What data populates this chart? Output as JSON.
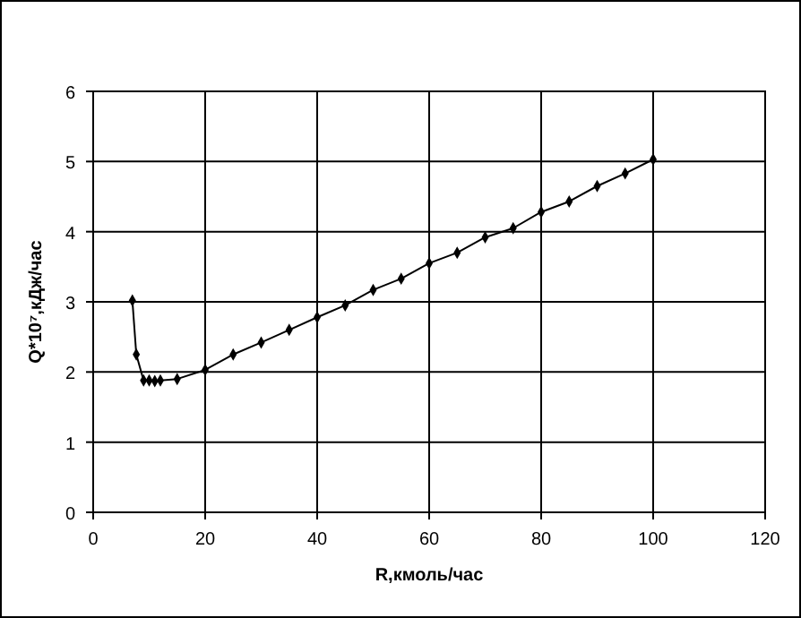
{
  "chart_data": {
    "type": "line",
    "xlabel": "R,кмоль/час",
    "ylabel": "Q*10⁷,кДж/час",
    "xlim": [
      0,
      120
    ],
    "xticks": [
      0,
      20,
      40,
      60,
      80,
      100,
      120
    ],
    "ylim": [
      0,
      6
    ],
    "yticks": [
      0,
      1,
      2,
      3,
      4,
      5,
      6
    ],
    "grid": true,
    "marker": "diamond",
    "line_style": "solid",
    "series": [
      {
        "color": "#000000",
        "x": [
          7,
          7.7,
          9,
          10,
          11,
          12,
          15,
          20,
          25,
          30,
          35,
          40,
          45,
          50,
          55,
          60,
          65,
          70,
          75,
          80,
          85,
          90,
          95,
          100
        ],
        "values": [
          3.02,
          2.25,
          1.88,
          1.88,
          1.87,
          1.88,
          1.9,
          2.03,
          2.25,
          2.42,
          2.6,
          2.78,
          2.95,
          3.17,
          3.33,
          3.55,
          3.7,
          3.92,
          4.05,
          4.28,
          4.43,
          4.65,
          4.83,
          5.03
        ]
      }
    ]
  }
}
